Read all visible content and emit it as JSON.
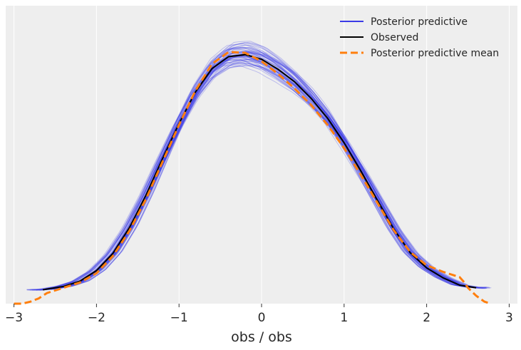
{
  "chart_data": {
    "type": "line",
    "title": "",
    "xlabel": "obs / obs",
    "ylabel": "",
    "xlim": [
      -3.1,
      3.1
    ],
    "ylim": [
      0,
      0.45
    ],
    "x_ticks": [
      -3,
      -2,
      -1,
      0,
      1,
      2,
      3
    ],
    "x_tick_labels": [
      "−3",
      "−2",
      "−1",
      "0",
      "1",
      "2",
      "3"
    ],
    "grid": "vertical",
    "legend_position": "top-right",
    "colors": {
      "posterior_predictive": "#3a3ae6",
      "observed": "#000000",
      "posterior_predictive_mean": "#ff7f0e",
      "background": "#eeeeee",
      "grid": "#ffffff"
    },
    "legend": [
      {
        "key": "posterior_predictive",
        "label": "Posterior predictive",
        "style": "solid"
      },
      {
        "key": "observed",
        "label": "Observed",
        "style": "solid"
      },
      {
        "key": "posterior_predictive_mean",
        "label": "Posterior predictive mean",
        "style": "dashed"
      }
    ],
    "series": [
      {
        "key": "observed",
        "x": [
          -2.65,
          -2.4,
          -2.2,
          -2.0,
          -1.8,
          -1.6,
          -1.4,
          -1.2,
          -1.0,
          -0.8,
          -0.6,
          -0.4,
          -0.2,
          0.0,
          0.2,
          0.4,
          0.6,
          0.8,
          1.0,
          1.2,
          1.4,
          1.6,
          1.8,
          2.0,
          2.2,
          2.4,
          2.6
        ],
        "y": [
          0.021,
          0.026,
          0.034,
          0.05,
          0.076,
          0.115,
          0.164,
          0.219,
          0.272,
          0.32,
          0.355,
          0.373,
          0.376,
          0.369,
          0.354,
          0.335,
          0.31,
          0.28,
          0.243,
          0.201,
          0.157,
          0.113,
          0.077,
          0.054,
          0.039,
          0.028,
          0.024
        ]
      },
      {
        "key": "posterior_predictive_mean",
        "x": [
          -3.0,
          -2.9,
          -2.8,
          -2.7,
          -2.6,
          -2.4,
          -2.2,
          -2.0,
          -1.8,
          -1.6,
          -1.4,
          -1.2,
          -1.0,
          -0.8,
          -0.6,
          -0.4,
          -0.2,
          0.0,
          0.2,
          0.4,
          0.6,
          0.8,
          1.0,
          1.2,
          1.4,
          1.6,
          1.8,
          2.0,
          2.2,
          2.4,
          2.45,
          2.5,
          2.6,
          2.7,
          2.75
        ],
        "y": [
          0.0,
          0.0,
          0.003,
          0.008,
          0.016,
          0.024,
          0.032,
          0.046,
          0.072,
          0.11,
          0.158,
          0.214,
          0.27,
          0.322,
          0.362,
          0.38,
          0.379,
          0.366,
          0.347,
          0.325,
          0.3,
          0.27,
          0.235,
          0.195,
          0.153,
          0.111,
          0.078,
          0.058,
          0.048,
          0.04,
          0.033,
          0.024,
          0.012,
          0.003,
          0.001
        ]
      }
    ]
  }
}
